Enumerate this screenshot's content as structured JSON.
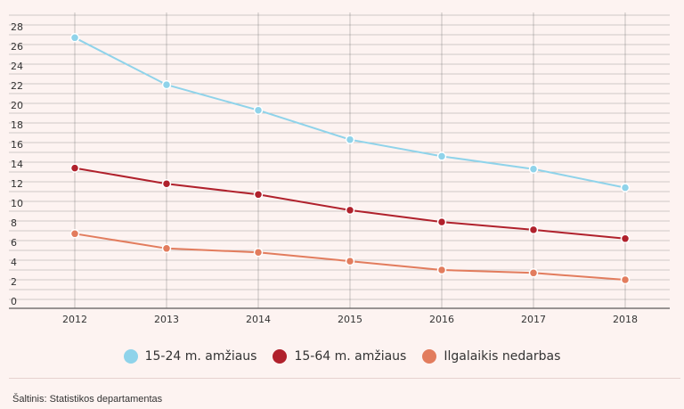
{
  "chart_data": {
    "type": "line",
    "x": [
      "2012",
      "2013",
      "2014",
      "2015",
      "2016",
      "2017",
      "2018"
    ],
    "yticks": [
      "0",
      "2",
      "4",
      "6",
      "8",
      "10",
      "12",
      "14",
      "16",
      "18",
      "20",
      "22",
      "24",
      "26",
      "28"
    ],
    "ylim": [
      0,
      28
    ],
    "grid": true,
    "legend_position": "bottom",
    "series": [
      {
        "name": "15-24 m. amžiaus",
        "color": "#8fd3ea",
        "values": [
          26.7,
          21.9,
          19.3,
          16.3,
          14.6,
          13.3,
          11.4
        ]
      },
      {
        "name": "15-64 m. amžiaus",
        "color": "#b0212c",
        "values": [
          13.4,
          11.8,
          10.7,
          9.1,
          7.9,
          7.1,
          6.2
        ]
      },
      {
        "name": "Ilgalaikis nedarbas",
        "color": "#e27c5d",
        "values": [
          6.7,
          5.2,
          4.8,
          3.9,
          3.0,
          2.7,
          2.0
        ]
      }
    ]
  },
  "legend": {
    "items": [
      {
        "label": "15-24 m. amžiaus",
        "color": "#8fd3ea"
      },
      {
        "label": "15-64 m. amžiaus",
        "color": "#b0212c"
      },
      {
        "label": "Ilgalaikis nedarbas",
        "color": "#e27c5d"
      }
    ]
  },
  "source": "Šaltinis: Statistikos departamentas"
}
